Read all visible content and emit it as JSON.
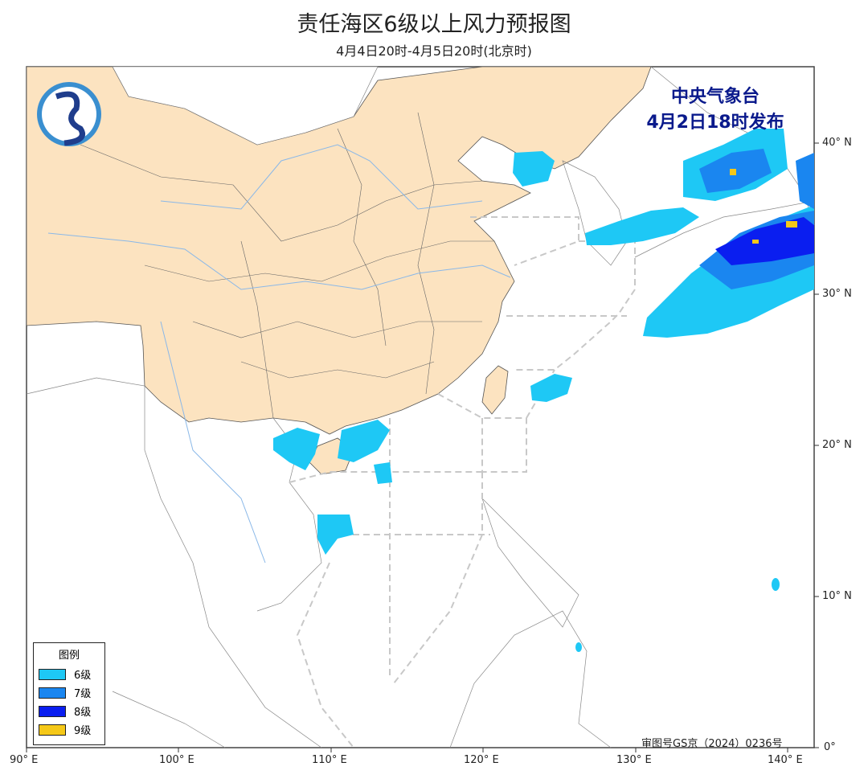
{
  "title": "责任海区6级以上风力预报图",
  "subtitle": "4月4日20时-4月5日20时(北京时)",
  "issuer": {
    "line1": "中央气象台",
    "line2": "4月2日18时发布"
  },
  "logo": "cma-logo-icon",
  "legend": {
    "title": "图例",
    "items": [
      {
        "label": "6级",
        "color": "#1ec8f5"
      },
      {
        "label": "7级",
        "color": "#1a86f0"
      },
      {
        "label": "8级",
        "color": "#0a1ef0"
      },
      {
        "label": "9级",
        "color": "#f5c818"
      }
    ]
  },
  "approval": "审图号GS京（2024）0236号",
  "x_ticks": [
    "90° E",
    "100° E",
    "110° E",
    "120° E",
    "130° E",
    "140° E"
  ],
  "y_ticks": [
    "40° N",
    "30° N",
    "20° N",
    "10° N",
    "0°"
  ],
  "colors": {
    "land": "#fce3c0",
    "river": "#8ab8e8",
    "sea_boundary": "#c8c8c8"
  }
}
